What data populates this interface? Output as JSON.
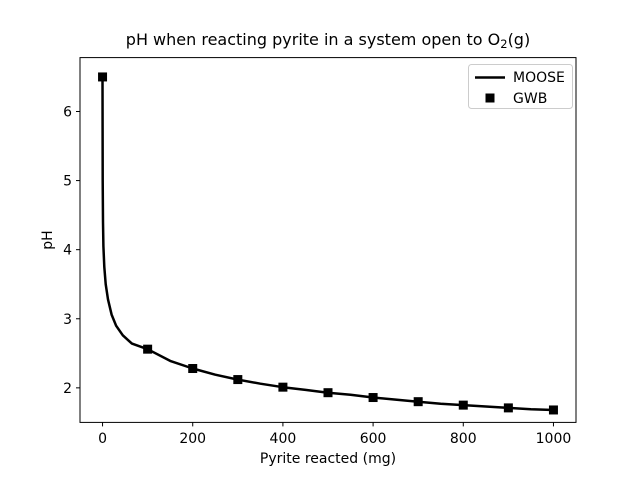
{
  "title": {
    "prefix": "pH when reacting pyrite in a system open to O",
    "sub": "2",
    "suffix": "(g)"
  },
  "axes": {
    "xlabel": "Pyrite reacted (mg)",
    "ylabel": "pH"
  },
  "legend": {
    "items": [
      {
        "label": "MOOSE",
        "symbol": "line"
      },
      {
        "label": "GWB",
        "symbol": "square-marker"
      }
    ]
  },
  "colors": {
    "line": "#000000",
    "marker": "#000000",
    "spine": "#000000",
    "legend_border": "#cccccc",
    "background": "#ffffff"
  },
  "chart_data": {
    "type": "line",
    "title": "pH when reacting pyrite in a system open to O2(g)",
    "xlabel": "Pyrite reacted (mg)",
    "ylabel": "pH",
    "xlim": [
      -50,
      1050
    ],
    "ylim": [
      1.5,
      6.78
    ],
    "xticks": [
      0,
      200,
      400,
      600,
      800,
      1000
    ],
    "yticks": [
      2,
      3,
      4,
      5,
      6
    ],
    "grid": false,
    "legend_position": "upper right",
    "series": [
      {
        "name": "MOOSE",
        "type": "line",
        "color": "#000000",
        "x": [
          0,
          0.3,
          1,
          2,
          4,
          7,
          12,
          20,
          30,
          45,
          65,
          100,
          150,
          200,
          250,
          300,
          350,
          400,
          450,
          500,
          550,
          600,
          650,
          700,
          750,
          800,
          850,
          900,
          950,
          1000
        ],
        "y": [
          6.5,
          5.0,
          4.4,
          4.05,
          3.75,
          3.5,
          3.28,
          3.06,
          2.9,
          2.76,
          2.64,
          2.56,
          2.39,
          2.28,
          2.19,
          2.12,
          2.06,
          2.01,
          1.97,
          1.93,
          1.9,
          1.86,
          1.83,
          1.8,
          1.77,
          1.75,
          1.73,
          1.71,
          1.69,
          1.68
        ]
      },
      {
        "name": "GWB",
        "type": "scatter",
        "marker": "square",
        "color": "#000000",
        "x": [
          0,
          100,
          200,
          300,
          400,
          500,
          600,
          700,
          800,
          900,
          1000
        ],
        "y": [
          6.5,
          2.56,
          2.28,
          2.12,
          2.01,
          1.93,
          1.86,
          1.8,
          1.75,
          1.71,
          1.68
        ]
      }
    ]
  }
}
